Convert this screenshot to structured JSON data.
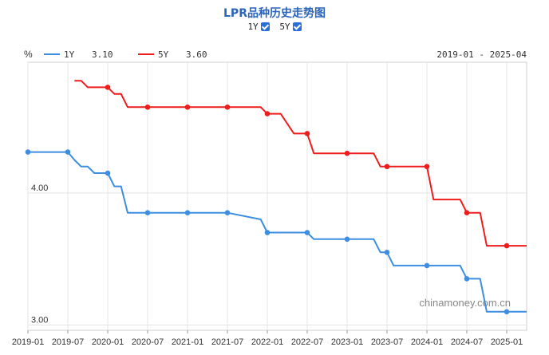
{
  "title": "LPR品种历史走势图",
  "toggles": [
    {
      "label": "1Y",
      "checked": true
    },
    {
      "label": "5Y",
      "checked": true
    }
  ],
  "chart_data": {
    "type": "line",
    "unit_label": "%",
    "range_label": "2019-01 - 2025-04",
    "watermark": "chinamoney.com.cn",
    "ylim": [
      2.96,
      4.99
    ],
    "y_ticks": [
      {
        "value": 3.0,
        "label": "3.00"
      },
      {
        "value": 4.0,
        "label": "4.00"
      }
    ],
    "x_start": "2019-01",
    "x_end": "2025-04",
    "x_ticks": [
      "2019-01",
      "2019-07",
      "2020-01",
      "2020-07",
      "2021-01",
      "2021-07",
      "2022-01",
      "2022-07",
      "2023-01",
      "2023-07",
      "2024-01",
      "2024-07",
      "2025-01"
    ],
    "grid": true,
    "legend_position": "top-left",
    "series": [
      {
        "name": "1Y",
        "latest": "3.10",
        "color": "#3d8ee0",
        "points": [
          [
            "2019-01",
            4.31
          ],
          [
            "2019-07",
            4.31
          ],
          [
            "2019-08",
            4.25
          ],
          [
            "2019-09",
            4.2
          ],
          [
            "2019-10",
            4.2
          ],
          [
            "2019-11",
            4.15
          ],
          [
            "2020-01",
            4.15
          ],
          [
            "2020-02",
            4.05
          ],
          [
            "2020-03",
            4.05
          ],
          [
            "2020-04",
            3.85
          ],
          [
            "2021-07",
            3.85
          ],
          [
            "2021-12",
            3.8
          ],
          [
            "2022-01",
            3.7
          ],
          [
            "2022-07",
            3.7
          ],
          [
            "2022-08",
            3.65
          ],
          [
            "2023-05",
            3.65
          ],
          [
            "2023-06",
            3.55
          ],
          [
            "2023-07",
            3.55
          ],
          [
            "2023-08",
            3.45
          ],
          [
            "2024-06",
            3.45
          ],
          [
            "2024-07",
            3.35
          ],
          [
            "2024-09",
            3.35
          ],
          [
            "2024-10",
            3.1
          ],
          [
            "2025-04",
            3.1
          ]
        ],
        "markers": [
          "2019-01",
          "2019-07",
          "2020-01",
          "2020-07",
          "2021-01",
          "2021-07",
          "2022-01",
          "2022-07",
          "2023-01",
          "2023-07",
          "2024-01",
          "2024-07",
          "2025-01"
        ]
      },
      {
        "name": "5Y",
        "latest": "3.60",
        "color": "#ee1d1d",
        "points": [
          [
            "2019-08",
            4.85
          ],
          [
            "2019-09",
            4.85
          ],
          [
            "2019-10",
            4.8
          ],
          [
            "2019-11",
            4.8
          ],
          [
            "2020-01",
            4.8
          ],
          [
            "2020-02",
            4.75
          ],
          [
            "2020-03",
            4.75
          ],
          [
            "2020-04",
            4.65
          ],
          [
            "2021-07",
            4.65
          ],
          [
            "2021-12",
            4.65
          ],
          [
            "2022-01",
            4.6
          ],
          [
            "2022-03",
            4.6
          ],
          [
            "2022-05",
            4.45
          ],
          [
            "2022-07",
            4.45
          ],
          [
            "2022-08",
            4.3
          ],
          [
            "2023-05",
            4.3
          ],
          [
            "2023-06",
            4.2
          ],
          [
            "2023-07",
            4.2
          ],
          [
            "2024-01",
            4.2
          ],
          [
            "2024-02",
            3.95
          ],
          [
            "2024-06",
            3.95
          ],
          [
            "2024-07",
            3.85
          ],
          [
            "2024-09",
            3.85
          ],
          [
            "2024-10",
            3.6
          ],
          [
            "2025-04",
            3.6
          ]
        ],
        "markers": [
          "2020-01",
          "2020-07",
          "2021-01",
          "2021-07",
          "2022-01",
          "2022-07",
          "2023-01",
          "2023-07",
          "2024-01",
          "2024-07",
          "2025-01"
        ]
      }
    ]
  }
}
